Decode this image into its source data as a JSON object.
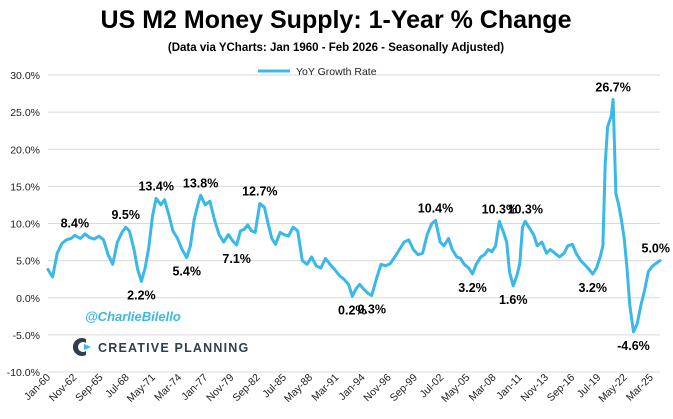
{
  "chart_data": {
    "type": "line",
    "title": "US M2 Money Supply: 1-Year % Change",
    "subtitle": "(Data via YCharts: Jan 1960 - Feb 2026 - Seasonally Adjusted)",
    "xlabel": "",
    "ylabel": "",
    "x_range": [
      1960.0,
      2026.17
    ],
    "ylim": [
      -10,
      30
    ],
    "y_ticks": [
      {
        "value": 30,
        "label": "30.0%"
      },
      {
        "value": 25,
        "label": "25.0%"
      },
      {
        "value": 20,
        "label": "20.0%"
      },
      {
        "value": 15,
        "label": "15.0%"
      },
      {
        "value": 10,
        "label": "10.0%"
      },
      {
        "value": 5,
        "label": "5.0%"
      },
      {
        "value": 0,
        "label": "0.0%"
      },
      {
        "value": -5,
        "label": "-5.0%"
      },
      {
        "value": -10,
        "label": "-10.0%"
      }
    ],
    "x_ticks": [
      {
        "date": 1960.0,
        "label": "Jan-60"
      },
      {
        "date": 1962.83,
        "label": "Nov-62"
      },
      {
        "date": 1965.67,
        "label": "Sep-65"
      },
      {
        "date": 1968.5,
        "label": "Jul-68"
      },
      {
        "date": 1971.33,
        "label": "May-71"
      },
      {
        "date": 1974.17,
        "label": "Mar-74"
      },
      {
        "date": 1977.0,
        "label": "Jan-77"
      },
      {
        "date": 1979.83,
        "label": "Nov-79"
      },
      {
        "date": 1982.67,
        "label": "Sep-82"
      },
      {
        "date": 1985.5,
        "label": "Jul-85"
      },
      {
        "date": 1988.33,
        "label": "May-88"
      },
      {
        "date": 1991.17,
        "label": "Mar-91"
      },
      {
        "date": 1994.0,
        "label": "Jan-94"
      },
      {
        "date": 1996.83,
        "label": "Nov-96"
      },
      {
        "date": 1999.67,
        "label": "Sep-99"
      },
      {
        "date": 2002.5,
        "label": "Jul-02"
      },
      {
        "date": 2005.33,
        "label": "May-05"
      },
      {
        "date": 2008.17,
        "label": "Mar-08"
      },
      {
        "date": 2011.0,
        "label": "Jan-11"
      },
      {
        "date": 2013.83,
        "label": "Nov-13"
      },
      {
        "date": 2016.67,
        "label": "Sep-16"
      },
      {
        "date": 2019.5,
        "label": "Jul-19"
      },
      {
        "date": 2022.33,
        "label": "May-22"
      },
      {
        "date": 2025.17,
        "label": "Mar-25"
      }
    ],
    "grid": true,
    "legend_position": "top-left",
    "series": [
      {
        "name": "YoY Growth Rate",
        "color": "#3ab8e8",
        "points": [
          [
            1960.0,
            3.8
          ],
          [
            1960.5,
            2.8
          ],
          [
            1961.0,
            6.0
          ],
          [
            1961.5,
            7.3
          ],
          [
            1962.0,
            7.8
          ],
          [
            1962.5,
            8.0
          ],
          [
            1962.9,
            8.4
          ],
          [
            1963.5,
            8.0
          ],
          [
            1964.0,
            8.6
          ],
          [
            1964.5,
            8.1
          ],
          [
            1965.0,
            7.9
          ],
          [
            1965.5,
            8.3
          ],
          [
            1966.0,
            7.8
          ],
          [
            1966.5,
            5.8
          ],
          [
            1967.0,
            4.5
          ],
          [
            1967.5,
            7.5
          ],
          [
            1968.0,
            8.8
          ],
          [
            1968.4,
            9.5
          ],
          [
            1968.8,
            9.0
          ],
          [
            1969.3,
            6.5
          ],
          [
            1969.7,
            3.8
          ],
          [
            1970.1,
            2.2
          ],
          [
            1970.5,
            4.0
          ],
          [
            1970.9,
            6.8
          ],
          [
            1971.3,
            11.0
          ],
          [
            1971.7,
            13.4
          ],
          [
            1972.2,
            12.5
          ],
          [
            1972.6,
            13.2
          ],
          [
            1973.0,
            11.5
          ],
          [
            1973.5,
            9.0
          ],
          [
            1974.0,
            8.0
          ],
          [
            1974.5,
            6.5
          ],
          [
            1975.0,
            5.4
          ],
          [
            1975.4,
            7.0
          ],
          [
            1975.8,
            10.5
          ],
          [
            1976.2,
            12.5
          ],
          [
            1976.5,
            13.8
          ],
          [
            1977.0,
            12.5
          ],
          [
            1977.5,
            13.0
          ],
          [
            1978.0,
            10.5
          ],
          [
            1978.5,
            8.5
          ],
          [
            1979.0,
            7.5
          ],
          [
            1979.5,
            8.5
          ],
          [
            1980.0,
            7.6
          ],
          [
            1980.4,
            7.1
          ],
          [
            1980.8,
            9.0
          ],
          [
            1981.2,
            9.2
          ],
          [
            1981.6,
            9.8
          ],
          [
            1982.0,
            9.0
          ],
          [
            1982.4,
            8.8
          ],
          [
            1982.9,
            12.7
          ],
          [
            1983.4,
            12.2
          ],
          [
            1983.8,
            10.0
          ],
          [
            1984.2,
            8.0
          ],
          [
            1984.6,
            7.2
          ],
          [
            1985.1,
            8.8
          ],
          [
            1985.5,
            8.5
          ],
          [
            1986.0,
            8.3
          ],
          [
            1986.5,
            9.5
          ],
          [
            1987.0,
            9.0
          ],
          [
            1987.5,
            5.0
          ],
          [
            1988.0,
            4.5
          ],
          [
            1988.5,
            5.5
          ],
          [
            1989.0,
            4.3
          ],
          [
            1989.5,
            4.0
          ],
          [
            1990.0,
            5.3
          ],
          [
            1990.5,
            4.5
          ],
          [
            1991.0,
            3.8
          ],
          [
            1991.5,
            3.0
          ],
          [
            1992.0,
            2.5
          ],
          [
            1992.5,
            1.8
          ],
          [
            1992.9,
            0.2
          ],
          [
            1993.3,
            1.2
          ],
          [
            1993.7,
            1.8
          ],
          [
            1994.1,
            1.2
          ],
          [
            1994.6,
            0.6
          ],
          [
            1995.0,
            0.3
          ],
          [
            1995.5,
            2.5
          ],
          [
            1996.0,
            4.5
          ],
          [
            1996.5,
            4.3
          ],
          [
            1997.0,
            4.6
          ],
          [
            1997.5,
            5.5
          ],
          [
            1998.0,
            6.5
          ],
          [
            1998.5,
            7.5
          ],
          [
            1999.0,
            7.8
          ],
          [
            1999.5,
            6.5
          ],
          [
            2000.0,
            5.8
          ],
          [
            2000.5,
            6.0
          ],
          [
            2001.0,
            8.5
          ],
          [
            2001.5,
            10.0
          ],
          [
            2001.9,
            10.4
          ],
          [
            2002.4,
            7.5
          ],
          [
            2002.8,
            7.0
          ],
          [
            2003.3,
            8.0
          ],
          [
            2003.7,
            6.5
          ],
          [
            2004.2,
            5.5
          ],
          [
            2004.6,
            5.3
          ],
          [
            2005.0,
            4.5
          ],
          [
            2005.5,
            4.0
          ],
          [
            2005.9,
            3.2
          ],
          [
            2006.3,
            4.5
          ],
          [
            2006.8,
            5.5
          ],
          [
            2007.2,
            5.8
          ],
          [
            2007.6,
            6.5
          ],
          [
            2008.0,
            6.2
          ],
          [
            2008.4,
            7.0
          ],
          [
            2008.8,
            10.3
          ],
          [
            2009.2,
            9.0
          ],
          [
            2009.6,
            7.5
          ],
          [
            2009.9,
            3.5
          ],
          [
            2010.3,
            1.6
          ],
          [
            2010.7,
            3.0
          ],
          [
            2011.0,
            4.5
          ],
          [
            2011.3,
            9.5
          ],
          [
            2011.6,
            10.3
          ],
          [
            2012.0,
            9.5
          ],
          [
            2012.5,
            8.5
          ],
          [
            2012.9,
            7.0
          ],
          [
            2013.4,
            7.5
          ],
          [
            2013.9,
            6.0
          ],
          [
            2014.3,
            6.5
          ],
          [
            2014.8,
            6.0
          ],
          [
            2015.3,
            5.5
          ],
          [
            2015.8,
            6.0
          ],
          [
            2016.2,
            7.0
          ],
          [
            2016.7,
            7.2
          ],
          [
            2017.1,
            6.0
          ],
          [
            2017.6,
            5.0
          ],
          [
            2018.0,
            4.5
          ],
          [
            2018.5,
            3.8
          ],
          [
            2018.9,
            3.2
          ],
          [
            2019.3,
            4.0
          ],
          [
            2019.7,
            5.5
          ],
          [
            2020.0,
            7.0
          ],
          [
            2020.25,
            18.0
          ],
          [
            2020.5,
            23.0
          ],
          [
            2020.9,
            24.5
          ],
          [
            2021.1,
            26.7
          ],
          [
            2021.4,
            14.0
          ],
          [
            2021.7,
            12.5
          ],
          [
            2022.0,
            10.5
          ],
          [
            2022.3,
            8.0
          ],
          [
            2022.6,
            4.0
          ],
          [
            2022.9,
            -1.0
          ],
          [
            2023.3,
            -4.6
          ],
          [
            2023.7,
            -3.5
          ],
          [
            2024.1,
            -1.0
          ],
          [
            2024.5,
            1.0
          ],
          [
            2024.9,
            3.5
          ],
          [
            2025.3,
            4.2
          ],
          [
            2025.7,
            4.6
          ],
          [
            2026.17,
            5.0
          ]
        ]
      }
    ],
    "annotations": [
      {
        "x": 1962.9,
        "y": 8.4,
        "text": "8.4%",
        "pos": "above"
      },
      {
        "x": 1968.4,
        "y": 9.5,
        "text": "9.5%",
        "pos": "above"
      },
      {
        "x": 1970.1,
        "y": 2.2,
        "text": "2.2%",
        "pos": "below"
      },
      {
        "x": 1971.7,
        "y": 13.4,
        "text": "13.4%",
        "pos": "above"
      },
      {
        "x": 1976.5,
        "y": 13.8,
        "text": "13.8%",
        "pos": "above"
      },
      {
        "x": 1975.0,
        "y": 5.4,
        "text": "5.4%",
        "pos": "below"
      },
      {
        "x": 1980.4,
        "y": 7.1,
        "text": "7.1%",
        "pos": "below"
      },
      {
        "x": 1982.9,
        "y": 12.7,
        "text": "12.7%",
        "pos": "above"
      },
      {
        "x": 1992.9,
        "y": 0.2,
        "text": "0.2%",
        "pos": "below"
      },
      {
        "x": 1995.0,
        "y": 0.3,
        "text": "0.3%",
        "pos": "below"
      },
      {
        "x": 2001.9,
        "y": 10.4,
        "text": "10.4%",
        "pos": "above"
      },
      {
        "x": 2005.9,
        "y": 3.2,
        "text": "3.2%",
        "pos": "below"
      },
      {
        "x": 2008.8,
        "y": 10.3,
        "text": "10.3%",
        "pos": "above"
      },
      {
        "x": 2010.3,
        "y": 1.6,
        "text": "1.6%",
        "pos": "below"
      },
      {
        "x": 2011.6,
        "y": 10.3,
        "text": "10.3%",
        "pos": "above"
      },
      {
        "x": 2018.9,
        "y": 3.2,
        "text": "3.2%",
        "pos": "below"
      },
      {
        "x": 2021.1,
        "y": 26.7,
        "text": "26.7%",
        "pos": "above"
      },
      {
        "x": 2023.3,
        "y": -4.6,
        "text": "-4.6%",
        "pos": "below"
      },
      {
        "x": 2026.17,
        "y": 5.0,
        "text": "5.0%",
        "pos": "above"
      }
    ]
  },
  "watermark": {
    "handle": "@CharlieBilello",
    "handle_color": "#3ab8e8",
    "brand": "CREATIVE PLANNING",
    "brand_color": "#2f3e50"
  },
  "colors": {
    "grid": "#d9d9d9",
    "line": "#3ab8e8"
  }
}
